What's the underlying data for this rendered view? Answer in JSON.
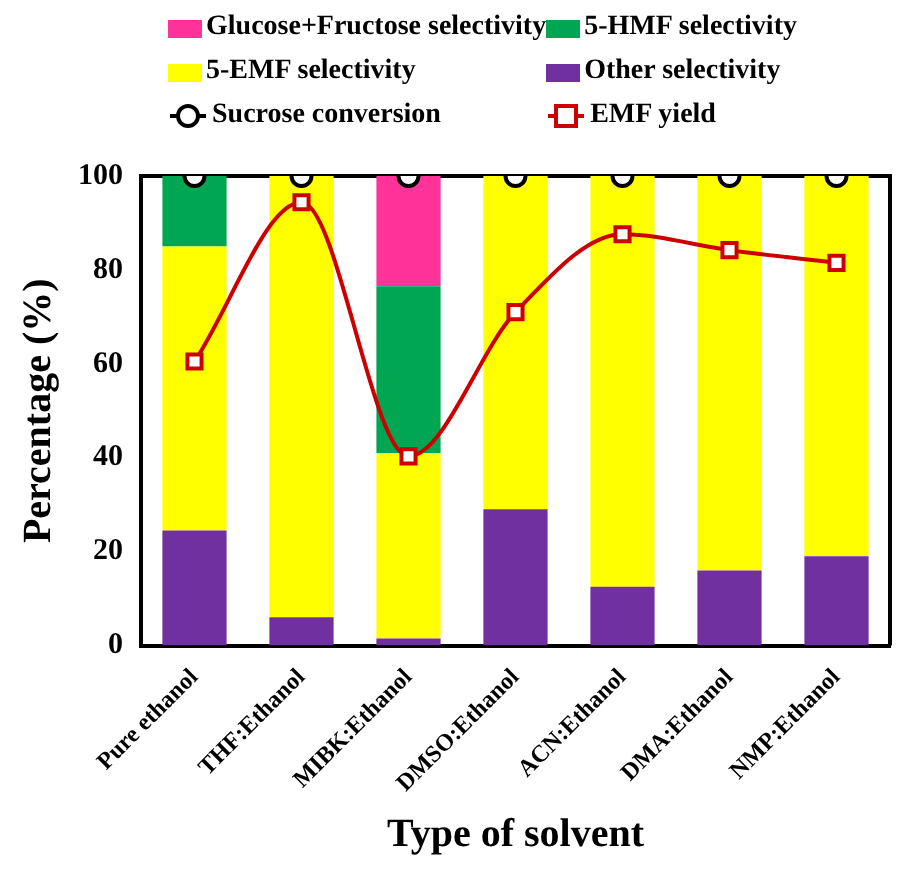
{
  "chart_data": {
    "type": "bar",
    "stacked": true,
    "xlabel": "Type of solvent",
    "ylabel": "Percentage (%)",
    "categories": [
      "Pure ethanol",
      "THF:Ethanol",
      "MIBK:Ethanol",
      "DMSO:Ethanol",
      "ACN:Ethanol",
      "DMA:Ethanol",
      "NMP:Ethanol"
    ],
    "series": [
      {
        "name": "Other selectivity",
        "color": "#7030a0",
        "values": [
          24.5,
          6,
          1.5,
          29,
          12.5,
          16,
          19
        ]
      },
      {
        "name": "5-EMF selectivity",
        "color": "#ffff00",
        "values": [
          60.5,
          94,
          39.5,
          71,
          87.5,
          84,
          81
        ]
      },
      {
        "name": "5-HMF selectivity",
        "color": "#00a651",
        "values": [
          15,
          0,
          35.5,
          0,
          0,
          0,
          0
        ]
      },
      {
        "name": "Glucose+Fructose selectivity",
        "color": "#ff3399",
        "values": [
          0,
          0,
          23.5,
          0,
          0,
          0,
          0
        ]
      },
      {
        "name": "Sucrose conversion",
        "type": "scatter",
        "color": "#000000",
        "marker": "circle",
        "x": [
          "Pure ethanol",
          "THF:Ethanol",
          "MIBK:Ethanol",
          "DMSO:Ethanol",
          "ACN:Ethanol",
          "DMA:Ethanol",
          "NMP:Ethanol"
        ],
        "values": [
          100,
          100,
          100,
          100,
          100,
          100,
          100
        ]
      },
      {
        "name": "EMF yield",
        "type": "line",
        "color": "#cc0000",
        "marker": "square",
        "line_style": "solid",
        "values": [
          60.5,
          94.4,
          40.3,
          71,
          87.6,
          84.2,
          81.5
        ]
      }
    ],
    "ylim": [
      0,
      100
    ],
    "yticks": [
      0,
      20,
      40,
      60,
      80,
      100
    ],
    "grid": false,
    "legend": "top"
  }
}
